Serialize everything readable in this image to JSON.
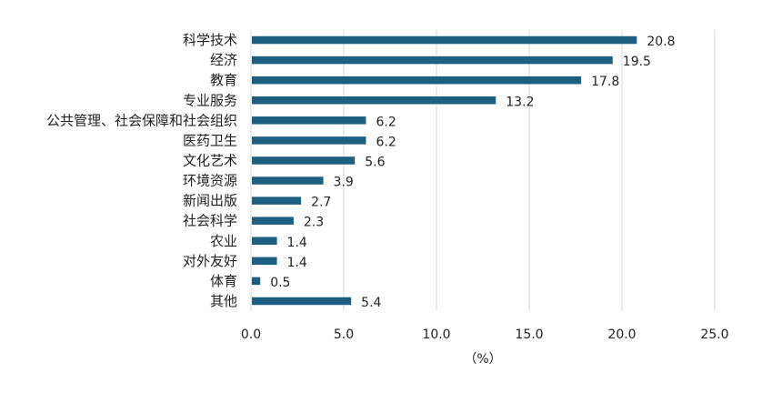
{
  "chart_data": {
    "type": "bar",
    "orientation": "horizontal",
    "categories": [
      "科学技术",
      "经济",
      "教育",
      "专业服务",
      "公共管理、社会保障和社会组织",
      "医药卫生",
      "文化艺术",
      "环境资源",
      "新闻出版",
      "社会科学",
      "农业",
      "对外友好",
      "体育",
      "其他"
    ],
    "values": [
      20.8,
      19.5,
      17.8,
      13.2,
      6.2,
      6.2,
      5.6,
      3.9,
      2.7,
      2.3,
      1.4,
      1.4,
      0.5,
      5.4
    ],
    "data_labels": [
      "20.8",
      "19.5",
      "17.8",
      "13.2",
      "6.2",
      "6.2",
      "5.6",
      "3.9",
      "2.7",
      "2.3",
      "1.4",
      "1.4",
      "0.5",
      "5.4"
    ],
    "x_ticks": [
      "0.0",
      "5.0",
      "10.0",
      "15.0",
      "20.0",
      "25.0"
    ],
    "xlim": [
      0,
      25
    ],
    "xlabel": "（%）",
    "ylabel": "",
    "title": "",
    "grid": "vertical",
    "legend": "none",
    "bar_color": "#1d5f80",
    "grid_color": "#d9d9d9"
  }
}
